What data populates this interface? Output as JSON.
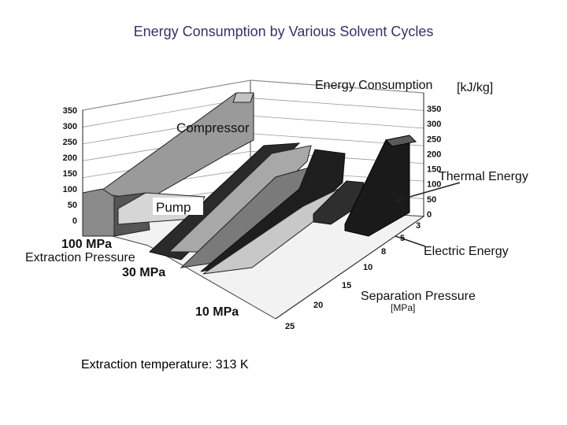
{
  "slide": {
    "title": "Energy Consumption by Various Solvent Cycles",
    "caption": "Extraction temperature: 313 K"
  },
  "chart_data": {
    "type": "bar",
    "title": "",
    "z_axis": {
      "label": "Energy Consumption",
      "unit": "[kJ/kg]",
      "range": [
        0,
        350
      ],
      "ticks_left": [
        "350",
        "300",
        "250",
        "200",
        "150",
        "100",
        "50",
        "0"
      ],
      "ticks_right": [
        "350",
        "300",
        "250",
        "200",
        "150",
        "100",
        "50",
        "0"
      ]
    },
    "x_axis": {
      "label": "Separation Pressure",
      "unit": "[MPa]",
      "ticks": [
        "3",
        "5",
        "8",
        "10",
        "15",
        "20",
        "25"
      ]
    },
    "y_axis": {
      "label": "Extraction Pressure",
      "categories": [
        "100 MPa",
        "30 MPa",
        "10 MPa"
      ]
    },
    "annotations": [
      "Compressor",
      "Pump",
      "Thermal Energy",
      "Electric Energy"
    ],
    "colors": {
      "dark": "#1e1e1e",
      "mid": "#6e6e6e",
      "light": "#b8b8b8"
    }
  }
}
